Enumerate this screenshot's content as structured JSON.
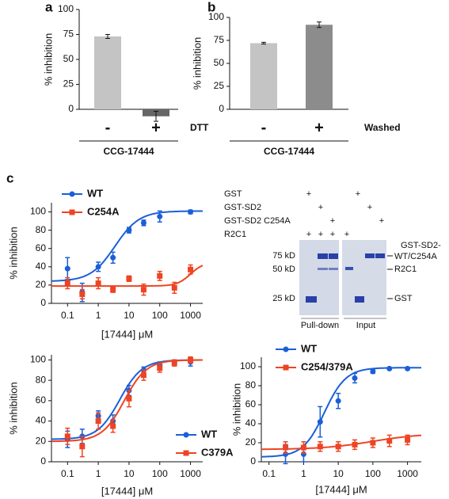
{
  "chart_data": [
    {
      "type": "bar",
      "panel": "a",
      "y_label": "% inhibition",
      "categories": [
        "-",
        "+"
      ],
      "values": [
        73,
        -7
      ],
      "errors": [
        2,
        5
      ],
      "colors": [
        "#c4c4c4",
        "#666666"
      ],
      "x_label": "DTT",
      "group_label": "CCG-17444",
      "ylim": [
        0,
        100
      ],
      "yticks": [
        0,
        25,
        50,
        75,
        100
      ]
    },
    {
      "type": "bar",
      "panel": "b",
      "y_label": "% inhibition",
      "categories": [
        "-",
        "+"
      ],
      "values": [
        72,
        92
      ],
      "errors": [
        1,
        3
      ],
      "colors": [
        "#c4c4c4",
        "#8c8c8c"
      ],
      "x_label": "Washed",
      "group_label": "CCG-17444",
      "ylim": [
        0,
        100
      ],
      "yticks": [
        0,
        25,
        50,
        75,
        100
      ]
    },
    {
      "type": "dose",
      "panel": "c",
      "y_label": "% inhibition",
      "x_label": "[17444] μM",
      "log_x": true,
      "legend": "top-left",
      "xlim": [
        0.03,
        2500
      ],
      "xticks": [
        0.1,
        1,
        10,
        100,
        1000
      ],
      "ylim": [
        0,
        110
      ],
      "yticks": [
        0,
        20,
        40,
        60,
        80,
        100
      ],
      "series": [
        {
          "name": "WT",
          "color": "#1a5fd8",
          "marker": "circle",
          "x": [
            0.1,
            0.3,
            1,
            3,
            10,
            30,
            100,
            1000
          ],
          "values": [
            38,
            12,
            40,
            50,
            80,
            88,
            95,
            100
          ],
          "errors": [
            12,
            10,
            5,
            6,
            3,
            3,
            6,
            2
          ],
          "fit": {
            "bottom": 24,
            "top": 101,
            "ec50": 3.5,
            "hill": 1.1
          }
        },
        {
          "name": "C254A",
          "color": "#ee4423",
          "marker": "square",
          "x": [
            0.1,
            0.3,
            1,
            3,
            10,
            30,
            100,
            300,
            1000
          ],
          "values": [
            22,
            10,
            22,
            15,
            27,
            15,
            30,
            17,
            37
          ],
          "errors": [
            6,
            5,
            6,
            3,
            3,
            6,
            5,
            6,
            5
          ],
          "fit": {
            "bottom": 19,
            "top": 45,
            "ec50": 1000,
            "hill": 2
          }
        }
      ]
    },
    {
      "type": "dose",
      "y_label": "% inhibition",
      "x_label": "[17444] μM",
      "log_x": true,
      "legend": "bottom-right",
      "xlim": [
        0.03,
        2500
      ],
      "xticks": [
        0.1,
        1,
        10,
        100,
        1000
      ],
      "ylim": [
        0,
        105
      ],
      "yticks": [
        0,
        20,
        40,
        60,
        80,
        100
      ],
      "series": [
        {
          "name": "WT",
          "color": "#1a5fd8",
          "marker": "circle",
          "x": [
            0.1,
            0.3,
            1,
            3,
            10,
            30,
            100,
            300,
            1000
          ],
          "values": [
            22,
            25,
            45,
            40,
            70,
            90,
            95,
            98,
            98
          ],
          "errors": [
            8,
            7,
            5,
            6,
            5,
            3,
            3,
            2,
            4
          ],
          "fit": {
            "bottom": 22,
            "top": 100,
            "ec50": 5,
            "hill": 1.2
          }
        },
        {
          "name": "C379A",
          "color": "#ee4423",
          "marker": "square",
          "x": [
            0.1,
            0.3,
            1,
            3,
            10,
            30,
            100,
            300,
            1000
          ],
          "values": [
            25,
            15,
            40,
            35,
            62,
            85,
            92,
            97,
            100
          ],
          "errors": [
            8,
            10,
            8,
            6,
            8,
            5,
            4,
            3,
            3
          ],
          "fit": {
            "bottom": 20,
            "top": 100,
            "ec50": 7,
            "hill": 1.2
          }
        }
      ]
    },
    {
      "type": "dose",
      "y_label": "% inhibition",
      "x_label": "[17444] μM",
      "log_x": true,
      "legend": "top-left",
      "xlim": [
        0.06,
        2500
      ],
      "xticks": [
        0.1,
        1,
        10,
        100,
        1000
      ],
      "ylim": [
        0,
        110
      ],
      "yticks": [
        0,
        20,
        40,
        60,
        80,
        100
      ],
      "series": [
        {
          "name": "WT",
          "color": "#1a5fd8",
          "marker": "circle",
          "x": [
            0.3,
            1,
            3,
            10,
            30,
            100,
            300,
            1000
          ],
          "values": [
            8,
            8,
            42,
            64,
            88,
            95,
            98,
            98
          ],
          "errors": [
            10,
            8,
            16,
            8,
            5,
            2,
            1,
            1
          ],
          "fit": {
            "bottom": 5,
            "top": 99,
            "ec50": 4,
            "hill": 1.4
          }
        },
        {
          "name": "C254/379A",
          "color": "#ee4423",
          "marker": "square",
          "x": [
            0.3,
            1,
            3,
            10,
            30,
            100,
            300,
            1000
          ],
          "values": [
            15,
            15,
            16,
            16,
            18,
            20,
            22,
            23
          ],
          "errors": [
            6,
            6,
            5,
            5,
            5,
            5,
            6,
            5
          ],
          "fit": {
            "bottom": 13,
            "top": 30,
            "ec50": 100,
            "hill": 0.6
          }
        }
      ]
    }
  ],
  "gel": {
    "rows": [
      "GST",
      "GST-SD2",
      "GST-SD2 C254A",
      "R2C1"
    ],
    "plus": [
      "+",
      "+",
      "+",
      "+",
      "+",
      "+",
      "+",
      "+",
      "+",
      "+"
    ],
    "markers": [
      "75 kD",
      "50 kD",
      "25 kD"
    ],
    "bands": [
      "GST-SD2-",
      "WT/C254A",
      "R2C1",
      "GST"
    ],
    "sections": [
      "Pull-down",
      "Input"
    ]
  }
}
